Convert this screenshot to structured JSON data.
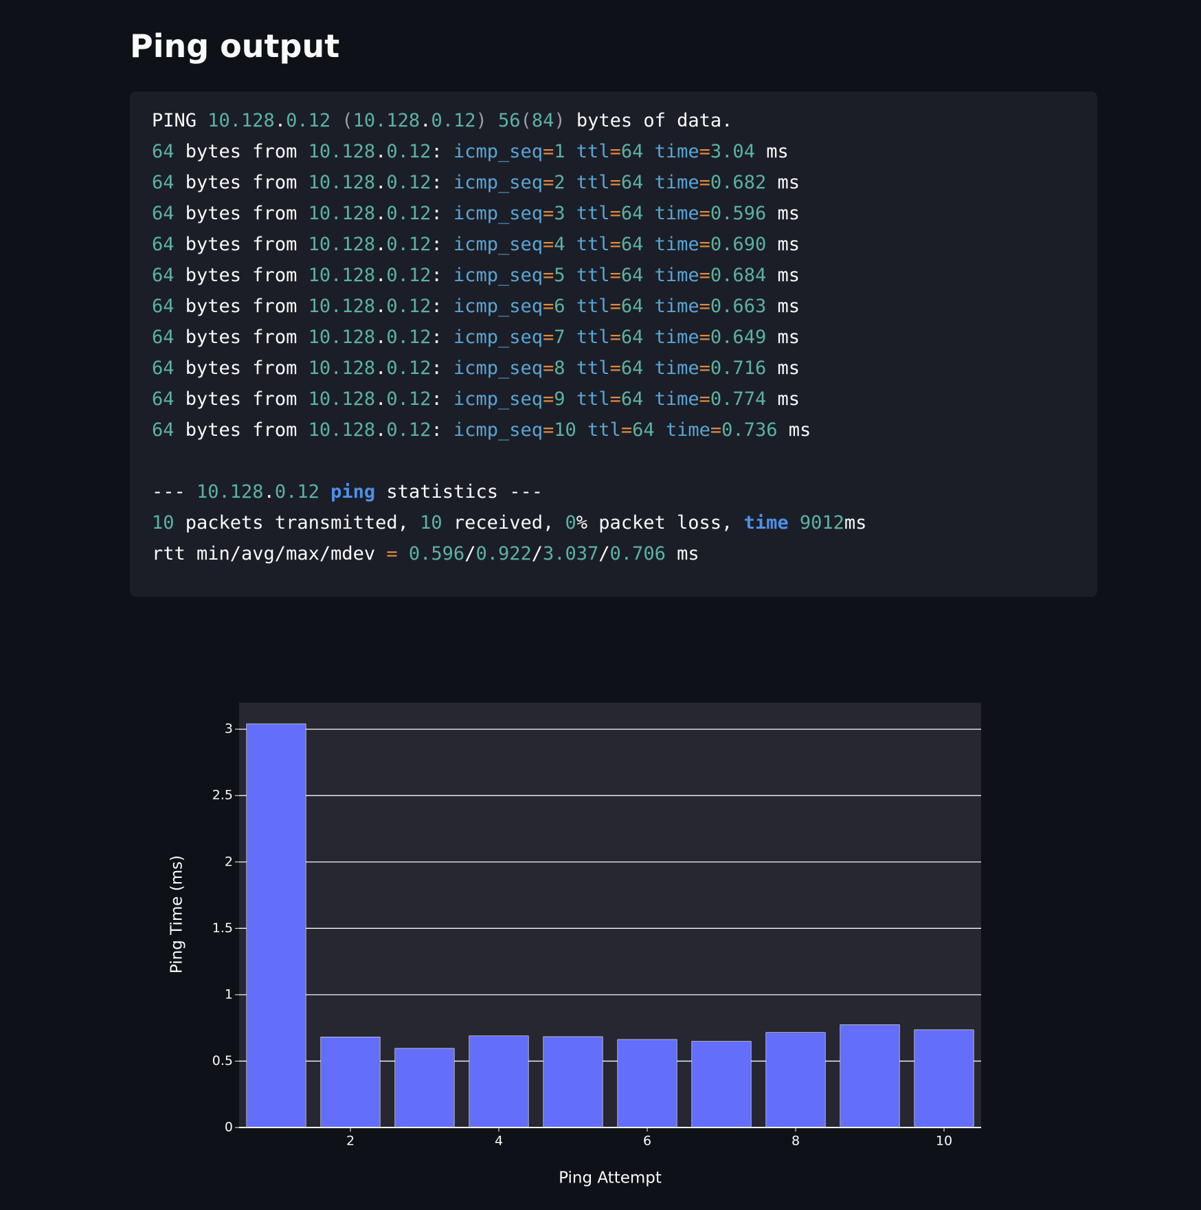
{
  "header": {
    "title": "Ping output"
  },
  "code": {
    "reply_lines": [
      "PING 10.128.0.12 (10.128.0.12) 56(84) bytes of data.",
      "64 bytes from 10.128.0.12: icmp_seq=1 ttl=64 time=3.04 ms",
      "64 bytes from 10.128.0.12: icmp_seq=2 ttl=64 time=0.682 ms",
      "64 bytes from 10.128.0.12: icmp_seq=3 ttl=64 time=0.596 ms",
      "64 bytes from 10.128.0.12: icmp_seq=4 ttl=64 time=0.690 ms",
      "64 bytes from 10.128.0.12: icmp_seq=5 ttl=64 time=0.684 ms",
      "64 bytes from 10.128.0.12: icmp_seq=6 ttl=64 time=0.663 ms",
      "64 bytes from 10.128.0.12: icmp_seq=7 ttl=64 time=0.649 ms",
      "64 bytes from 10.128.0.12: icmp_seq=8 ttl=64 time=0.716 ms",
      "64 bytes from 10.128.0.12: icmp_seq=9 ttl=64 time=0.774 ms",
      "64 bytes from 10.128.0.12: icmp_seq=10 ttl=64 time=0.736 ms"
    ],
    "stats_lines": [
      "--- 10.128.0.12 ping statistics ---",
      "10 packets transmitted, 10 received, 0% packet loss, time 9012ms",
      "rtt min/avg/max/mdev = 0.596/0.922/3.037/0.706 ms"
    ]
  },
  "chart_data": {
    "type": "bar",
    "x": [
      1,
      2,
      3,
      4,
      5,
      6,
      7,
      8,
      9,
      10
    ],
    "values": [
      3.04,
      0.682,
      0.596,
      0.69,
      0.684,
      0.663,
      0.649,
      0.716,
      0.774,
      0.736
    ],
    "color": "#636efa",
    "xlim": [
      0.5,
      10.5
    ],
    "xticks": [
      2,
      4,
      6,
      8,
      10
    ],
    "ylim": [
      0,
      3.2
    ],
    "yticks": [
      0,
      0.5,
      1,
      1.5,
      2,
      2.5,
      3
    ],
    "grid": true,
    "xlabel": "Ping Attempt",
    "ylabel": "Ping Time (ms)"
  }
}
